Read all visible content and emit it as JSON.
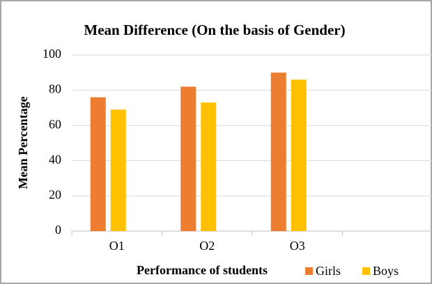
{
  "chart_data": {
    "type": "bar",
    "title": "Mean Difference (On the basis of Gender)",
    "x_label": "Performance of students",
    "y_label": "Mean Percentage",
    "categories": [
      "O1",
      "O2",
      "O3",
      null
    ],
    "series": [
      {
        "name": "Girls",
        "color": "#ed7d31",
        "values": [
          76,
          82,
          90,
          null
        ]
      },
      {
        "name": "Boys",
        "color": "#ffc000",
        "values": [
          69,
          73,
          86,
          null
        ]
      }
    ],
    "ylim": [
      0,
      100
    ],
    "yticks": [
      0,
      20,
      40,
      60,
      80,
      100
    ],
    "grid": true,
    "legend": "bottom-right"
  }
}
